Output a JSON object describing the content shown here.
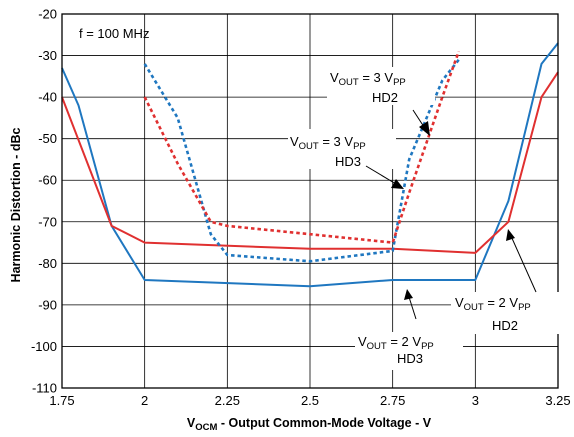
{
  "chart_data": {
    "type": "line",
    "annotation_freq": "f = 100 MHz",
    "ylabel": "Harmonic Distortion - dBc",
    "xlabel": {
      "main": "V",
      "sub": "OCM",
      "rest": " - Output Common-Mode Voltage - V"
    },
    "xlim": [
      1.75,
      3.25
    ],
    "ylim": [
      -110,
      -20
    ],
    "x_ticks": [
      1.75,
      2,
      2.25,
      2.5,
      2.75,
      3,
      3.25
    ],
    "x_tick_labels": [
      "1.75",
      "2",
      "2.25",
      "2.5",
      "2.75",
      "3",
      "3.25"
    ],
    "y_ticks": [
      -20,
      -30,
      -40,
      -50,
      -60,
      -70,
      -80,
      -90,
      -100,
      -110
    ],
    "y_tick_labels": [
      "-20",
      "-30",
      "-40",
      "-50",
      "-60",
      "-70",
      "-80",
      "-90",
      "-100",
      "-110"
    ],
    "grid": true,
    "series": [
      {
        "color": "#1f77c0",
        "dashed": false,
        "x": [
          1.75,
          1.8,
          1.9,
          2.0,
          2.5,
          2.75,
          3.0,
          3.1,
          3.2,
          3.25
        ],
        "y": [
          -33,
          -42,
          -71,
          -84,
          -85.5,
          -84,
          -84,
          -65,
          -32,
          -27
        ]
      },
      {
        "color": "#e03030",
        "dashed": false,
        "x": [
          1.75,
          1.9,
          2.0,
          2.5,
          2.75,
          3.0,
          3.1,
          3.2,
          3.25
        ],
        "y": [
          -40,
          -71,
          -75,
          -76.5,
          -76.5,
          -77.5,
          -70,
          -40,
          -34
        ]
      },
      {
        "color": "#1f77c0",
        "dashed": true,
        "x": [
          2.0,
          2.1,
          2.2,
          2.25,
          2.5,
          2.75,
          2.8,
          2.9,
          2.95
        ],
        "y": [
          -32,
          -45,
          -73,
          -78,
          -79.5,
          -77,
          -55,
          -36,
          -31
        ]
      },
      {
        "color": "#e03030",
        "dashed": true,
        "x": [
          2.0,
          2.1,
          2.2,
          2.25,
          2.5,
          2.75,
          2.8,
          2.9,
          2.95
        ],
        "y": [
          -40,
          -56,
          -70,
          -71,
          -73,
          -75,
          -63,
          -40,
          -29
        ]
      }
    ],
    "annotations": [
      {
        "pre": "V",
        "sub1": "OUT",
        "mid": " = 3 V",
        "sub2": "PP",
        "line2": "HD2"
      },
      {
        "pre": "V",
        "sub1": "OUT",
        "mid": " = 3 V",
        "sub2": "PP",
        "line2": "HD3"
      },
      {
        "pre": "V",
        "sub1": "OUT",
        "mid": " = 2 V",
        "sub2": "PP",
        "line2": "HD2"
      },
      {
        "pre": "V",
        "sub1": "OUT",
        "mid": " = 2 V",
        "sub2": "PP",
        "line2": "HD3"
      }
    ]
  }
}
